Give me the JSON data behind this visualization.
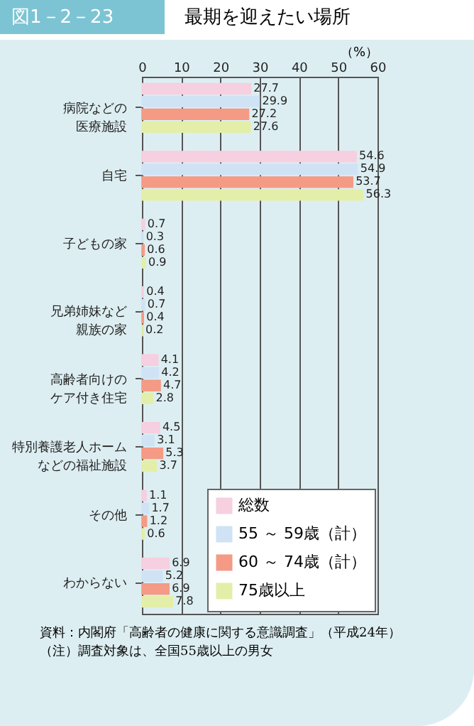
{
  "chart_data": {
    "type": "bar",
    "orientation": "horizontal",
    "title": "最期を迎えたい場所",
    "xlabel": "（%）",
    "categories": [
      "病院などの医療施設",
      "自宅",
      "子どもの家",
      "兄弟姉妹など親族の家",
      "高齢者向けのケア付き住宅",
      "特別養護老人ホームなどの福祉施設",
      "その他",
      "わからない"
    ],
    "series": [
      {
        "name": "総数",
        "color": "#f6cfe0",
        "values": [
          27.7,
          54.6,
          0.7,
          0.4,
          4.1,
          4.5,
          1.1,
          6.9
        ]
      },
      {
        "name": "55 ～ 59歳（計）",
        "color": "#cfe3f5",
        "values": [
          29.9,
          54.9,
          0.3,
          0.7,
          4.2,
          3.1,
          1.7,
          5.2
        ]
      },
      {
        "name": "60 ～ 74歳（計）",
        "color": "#f49a85",
        "values": [
          27.2,
          53.7,
          0.6,
          0.4,
          4.7,
          5.3,
          1.2,
          6.9
        ]
      },
      {
        "name": "75歳以上",
        "color": "#e3efa8",
        "values": [
          27.6,
          56.3,
          0.9,
          0.2,
          2.8,
          3.7,
          0.6,
          7.8
        ]
      }
    ],
    "xlim": [
      0,
      60
    ],
    "xticks": [
      0,
      10,
      20,
      30,
      40,
      50,
      60
    ],
    "grid": "x",
    "legend": "bottom right",
    "data_labels": true,
    "annotations": [
      "図1－2－23",
      "資料：内閣府「高齢者の健康に関する意識調査」（平成24年）",
      "（注）調査対象は、全国55歳以上の男女"
    ]
  }
}
